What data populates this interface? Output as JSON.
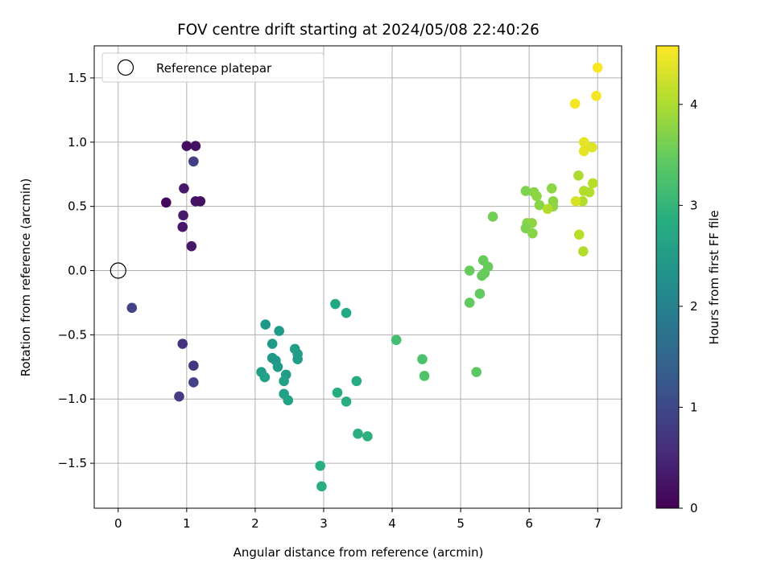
{
  "chart_data": {
    "type": "scatter",
    "title": "FOV centre drift starting at 2024/05/08 22:40:26",
    "xlabel": "Angular distance from reference (arcmin)",
    "ylabel": "Rotation from reference (arcmin)",
    "xlim": [
      -0.35,
      7.35
    ],
    "ylim": [
      -1.85,
      1.75
    ],
    "x_ticks": [
      0,
      1,
      2,
      3,
      4,
      5,
      6,
      7
    ],
    "x_tick_labels": [
      "0",
      "1",
      "2",
      "3",
      "4",
      "5",
      "6",
      "7"
    ],
    "y_ticks": [
      -1.5,
      -1.0,
      -0.5,
      0.0,
      0.5,
      1.0,
      1.5
    ],
    "y_tick_labels": [
      "−1.5",
      "−1.0",
      "−0.5",
      "0.0",
      "0.5",
      "1.0",
      "1.5"
    ],
    "grid": true,
    "legend": {
      "location": "upper-left",
      "entries": [
        "Reference platepar"
      ]
    },
    "reference_marker": {
      "x": 0,
      "y": 0,
      "label": "Reference platepar"
    },
    "colorbar": {
      "label": "Hours from first FF file",
      "colormap": "viridis",
      "range": [
        0,
        4.58
      ],
      "ticks": [
        0,
        1,
        2,
        3,
        4
      ],
      "tick_labels": [
        "0",
        "1",
        "2",
        "3",
        "4"
      ]
    },
    "points": [
      {
        "x": 1.0,
        "y": 0.97,
        "c": 0.15
      },
      {
        "x": 1.13,
        "y": 0.97,
        "c": 0.2
      },
      {
        "x": 0.7,
        "y": 0.53,
        "c": 0.1
      },
      {
        "x": 0.96,
        "y": 0.64,
        "c": 0.3
      },
      {
        "x": 1.13,
        "y": 0.54,
        "c": 0.25
      },
      {
        "x": 1.2,
        "y": 0.54,
        "c": 0.2
      },
      {
        "x": 0.95,
        "y": 0.43,
        "c": 0.35
      },
      {
        "x": 0.94,
        "y": 0.34,
        "c": 0.3
      },
      {
        "x": 1.07,
        "y": 0.19,
        "c": 0.3
      },
      {
        "x": 1.1,
        "y": 0.85,
        "c": 0.85
      },
      {
        "x": 0.2,
        "y": -0.29,
        "c": 0.9
      },
      {
        "x": 0.94,
        "y": -0.57,
        "c": 0.65
      },
      {
        "x": 1.1,
        "y": -0.74,
        "c": 0.7
      },
      {
        "x": 1.1,
        "y": -0.87,
        "c": 0.9
      },
      {
        "x": 0.89,
        "y": -0.98,
        "c": 0.8
      },
      {
        "x": 2.15,
        "y": -0.42,
        "c": 2.4
      },
      {
        "x": 2.35,
        "y": -0.47,
        "c": 2.5
      },
      {
        "x": 2.25,
        "y": -0.57,
        "c": 2.45
      },
      {
        "x": 2.58,
        "y": -0.61,
        "c": 2.55
      },
      {
        "x": 2.25,
        "y": -0.68,
        "c": 2.4
      },
      {
        "x": 2.3,
        "y": -0.7,
        "c": 2.45
      },
      {
        "x": 2.62,
        "y": -0.65,
        "c": 2.5
      },
      {
        "x": 2.62,
        "y": -0.69,
        "c": 2.5
      },
      {
        "x": 2.33,
        "y": -0.75,
        "c": 2.5
      },
      {
        "x": 2.09,
        "y": -0.79,
        "c": 2.55
      },
      {
        "x": 2.14,
        "y": -0.83,
        "c": 2.6
      },
      {
        "x": 2.45,
        "y": -0.81,
        "c": 2.55
      },
      {
        "x": 2.42,
        "y": -0.86,
        "c": 2.6
      },
      {
        "x": 2.42,
        "y": -0.96,
        "c": 2.6
      },
      {
        "x": 2.48,
        "y": -1.01,
        "c": 2.65
      },
      {
        "x": 3.17,
        "y": -0.26,
        "c": 2.75
      },
      {
        "x": 3.33,
        "y": -0.33,
        "c": 2.75
      },
      {
        "x": 3.2,
        "y": -0.95,
        "c": 2.8
      },
      {
        "x": 3.48,
        "y": -0.86,
        "c": 2.8
      },
      {
        "x": 3.33,
        "y": -1.02,
        "c": 2.85
      },
      {
        "x": 3.5,
        "y": -1.27,
        "c": 2.85
      },
      {
        "x": 3.64,
        "y": -1.29,
        "c": 2.9
      },
      {
        "x": 2.95,
        "y": -1.52,
        "c": 2.85
      },
      {
        "x": 2.97,
        "y": -1.68,
        "c": 2.85
      },
      {
        "x": 4.06,
        "y": -0.54,
        "c": 3.2
      },
      {
        "x": 4.44,
        "y": -0.69,
        "c": 3.25
      },
      {
        "x": 4.47,
        "y": -0.82,
        "c": 3.3
      },
      {
        "x": 5.23,
        "y": -0.79,
        "c": 3.4
      },
      {
        "x": 5.13,
        "y": -0.25,
        "c": 3.45
      },
      {
        "x": 5.28,
        "y": -0.18,
        "c": 3.45
      },
      {
        "x": 5.13,
        "y": 0.0,
        "c": 3.5
      },
      {
        "x": 5.33,
        "y": 0.08,
        "c": 3.5
      },
      {
        "x": 5.4,
        "y": 0.03,
        "c": 3.5
      },
      {
        "x": 5.35,
        "y": -0.02,
        "c": 3.5
      },
      {
        "x": 5.31,
        "y": -0.04,
        "c": 3.5
      },
      {
        "x": 5.47,
        "y": 0.42,
        "c": 3.6
      },
      {
        "x": 5.95,
        "y": 0.62,
        "c": 3.7
      },
      {
        "x": 6.07,
        "y": 0.61,
        "c": 3.75
      },
      {
        "x": 6.11,
        "y": 0.58,
        "c": 3.8
      },
      {
        "x": 6.15,
        "y": 0.51,
        "c": 3.75
      },
      {
        "x": 6.33,
        "y": 0.64,
        "c": 3.8
      },
      {
        "x": 6.35,
        "y": 0.54,
        "c": 3.8
      },
      {
        "x": 6.35,
        "y": 0.5,
        "c": 3.8
      },
      {
        "x": 5.97,
        "y": 0.37,
        "c": 3.75
      },
      {
        "x": 6.04,
        "y": 0.37,
        "c": 3.8
      },
      {
        "x": 5.95,
        "y": 0.33,
        "c": 3.7
      },
      {
        "x": 6.05,
        "y": 0.29,
        "c": 3.75
      },
      {
        "x": 6.27,
        "y": 0.48,
        "c": 4.05
      },
      {
        "x": 6.72,
        "y": 0.74,
        "c": 4.0
      },
      {
        "x": 6.8,
        "y": 0.62,
        "c": 4.05
      },
      {
        "x": 6.88,
        "y": 0.61,
        "c": 4.05
      },
      {
        "x": 6.93,
        "y": 0.68,
        "c": 4.1
      },
      {
        "x": 6.78,
        "y": 0.54,
        "c": 4.05
      },
      {
        "x": 6.73,
        "y": 0.28,
        "c": 4.1
      },
      {
        "x": 6.79,
        "y": 0.15,
        "c": 4.05
      },
      {
        "x": 6.68,
        "y": 0.54,
        "c": 4.3
      },
      {
        "x": 6.8,
        "y": 1.0,
        "c": 4.4
      },
      {
        "x": 6.83,
        "y": 0.97,
        "c": 4.4
      },
      {
        "x": 6.8,
        "y": 0.93,
        "c": 4.4
      },
      {
        "x": 6.92,
        "y": 0.96,
        "c": 4.35
      },
      {
        "x": 6.67,
        "y": 1.3,
        "c": 4.5
      },
      {
        "x": 6.98,
        "y": 1.36,
        "c": 4.5
      },
      {
        "x": 7.0,
        "y": 1.58,
        "c": 4.55
      }
    ]
  }
}
